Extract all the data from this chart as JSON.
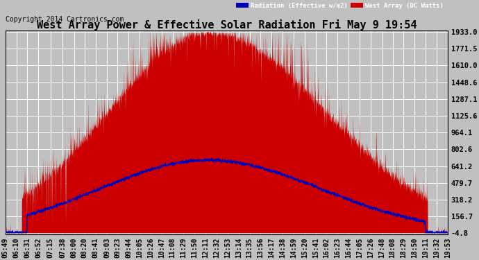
{
  "title": "West Array Power & Effective Solar Radiation Fri May 9 19:54",
  "copyright": "Copyright 2014 Cartronics.com",
  "legend_labels": [
    "Radiation (Effective w/m2)",
    "West Array (DC Watts)"
  ],
  "legend_colors_bg": [
    "#0000bb",
    "#cc0000"
  ],
  "legend_text_colors": [
    "#ffffff",
    "#ffffff"
  ],
  "yticks": [
    -4.8,
    156.7,
    318.2,
    479.7,
    641.2,
    802.6,
    964.1,
    1125.6,
    1287.1,
    1448.6,
    1610.0,
    1771.5,
    1933.0
  ],
  "ymin": -4.8,
  "ymax": 1933.0,
  "bg_color": "#c0c0c0",
  "plot_bg_color": "#c0c0c0",
  "grid_color": "#ffffff",
  "title_color": "#000000",
  "title_fontsize": 11,
  "copyright_fontsize": 7,
  "tick_fontsize": 7,
  "ytick_fontsize": 7.5,
  "radiation_color": "#0000bb",
  "power_color": "#cc0000",
  "radiation_max": 700,
  "power_max": 1933
}
